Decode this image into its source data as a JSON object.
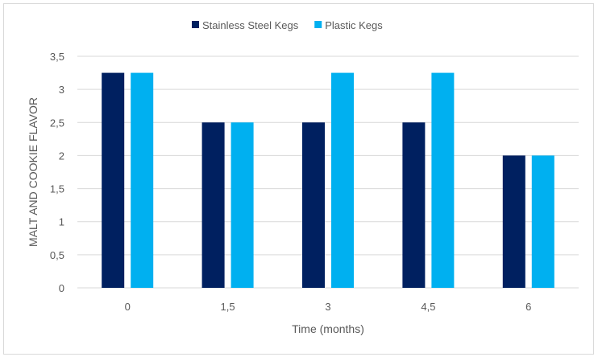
{
  "chart_data": {
    "type": "bar",
    "title": "",
    "xlabel": "Time (months)",
    "ylabel": "MALT AND COOKIE FLAVOR",
    "categories": [
      "0",
      "1,5",
      "3",
      "4,5",
      "6"
    ],
    "series": [
      {
        "name": "Stainless Steel Kegs",
        "color": "#002060",
        "values": [
          3.25,
          2.5,
          2.5,
          2.5,
          2
        ]
      },
      {
        "name": "Plastic Kegs",
        "color": "#00b0f0",
        "values": [
          3.25,
          2.5,
          3.25,
          3.25,
          2
        ]
      }
    ],
    "yticks": [
      "0",
      "0,5",
      "1",
      "1,5",
      "2",
      "2,5",
      "3",
      "3,5"
    ],
    "ylim": [
      0,
      3.5
    ],
    "grid": true,
    "legend": "top-center"
  }
}
